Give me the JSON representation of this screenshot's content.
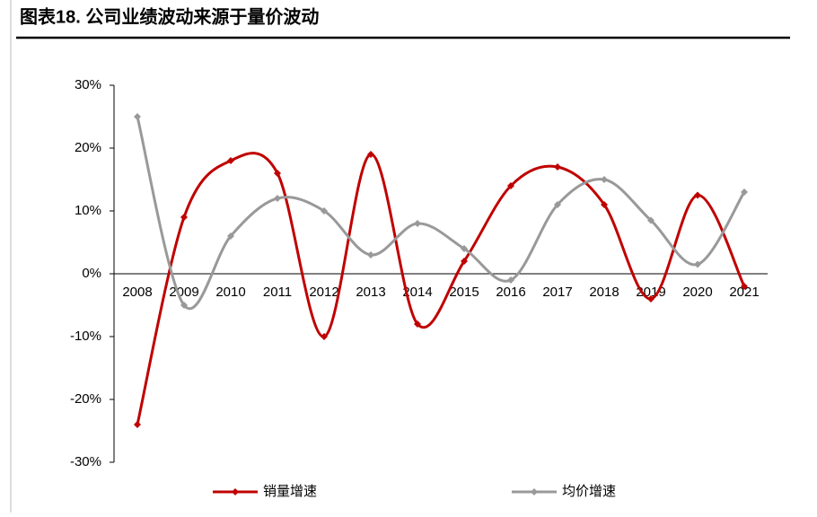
{
  "chart_data": {
    "type": "line",
    "title": "图表18.  公司业绩波动来源于量价波动",
    "categories": [
      "2008",
      "2009",
      "2010",
      "2011",
      "2012",
      "2013",
      "2014",
      "2015",
      "2016",
      "2017",
      "2018",
      "2019",
      "2020",
      "2021"
    ],
    "series": [
      {
        "name": "销量增速",
        "color": "#c00000",
        "values": [
          -24,
          9,
          18,
          16,
          -10,
          19,
          -8,
          2,
          14,
          17,
          11,
          -4,
          12.5,
          -2
        ]
      },
      {
        "name": "均价增速",
        "color": "#999999",
        "values": [
          25,
          -5,
          6,
          12,
          10,
          3,
          8,
          4,
          -1,
          11,
          15,
          8.5,
          1.5,
          13
        ]
      }
    ],
    "ylim": [
      -30,
      30
    ],
    "yticks": [
      {
        "value": -30,
        "label": "-30%"
      },
      {
        "value": -20,
        "label": "-20%"
      },
      {
        "value": -10,
        "label": "-10%"
      },
      {
        "value": 0,
        "label": "0%"
      },
      {
        "value": 10,
        "label": "10%"
      },
      {
        "value": 20,
        "label": "20%"
      },
      {
        "value": 30,
        "label": "30%"
      }
    ],
    "smooth": true
  }
}
